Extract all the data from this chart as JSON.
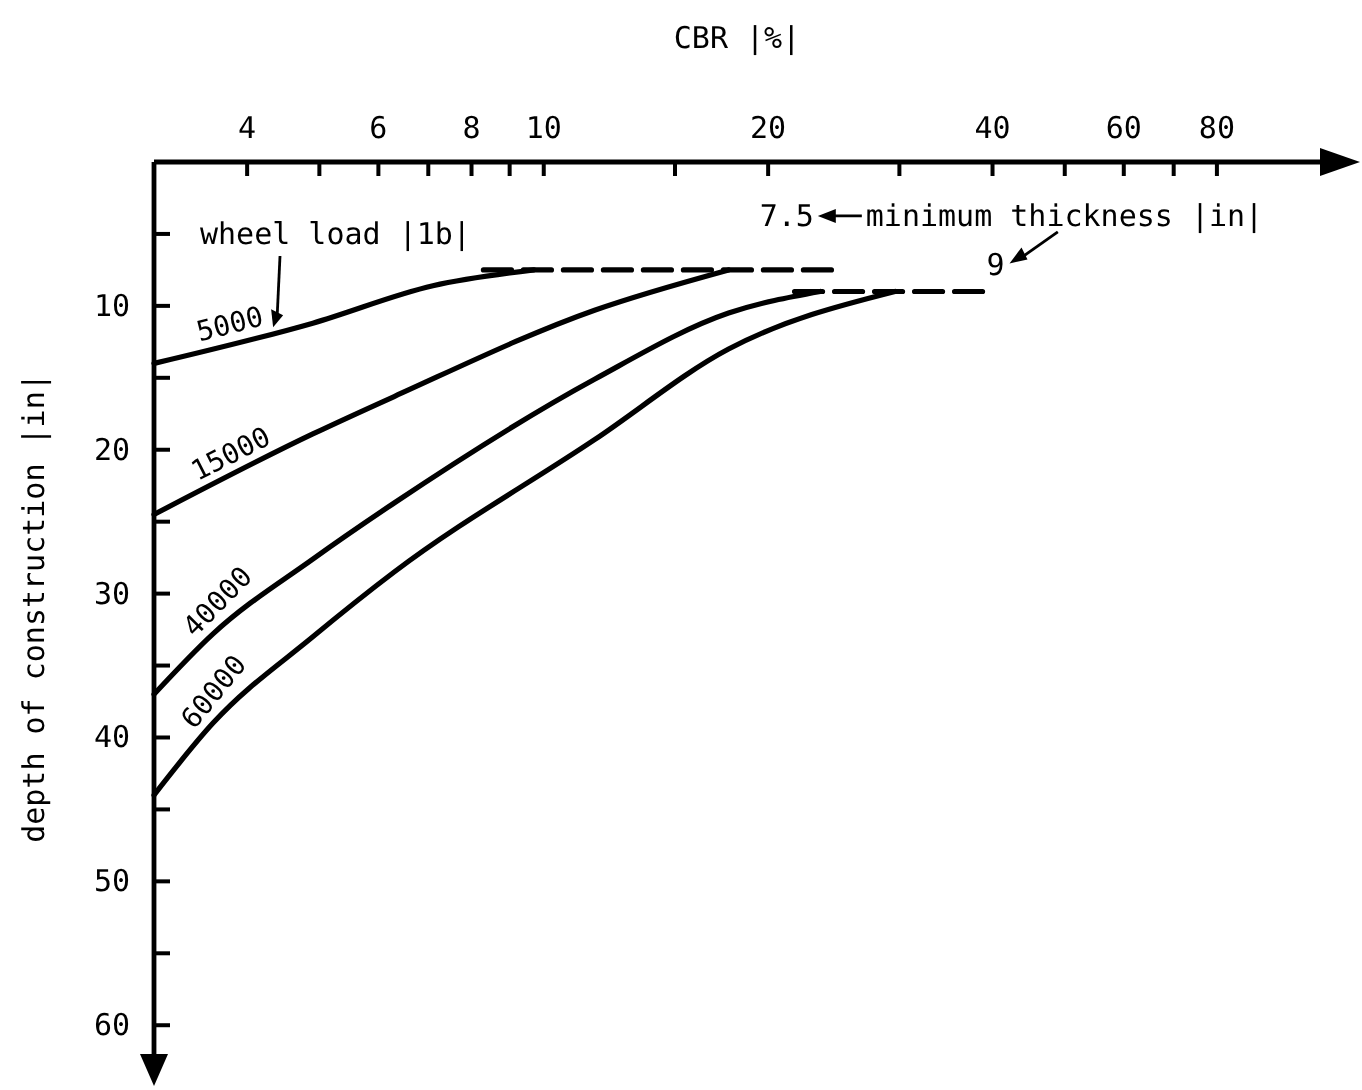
{
  "chart_data": {
    "type": "line",
    "xlabel": "CBR |%|",
    "ylabel": "depth of construction |in|",
    "legend_title": "wheel load |1b|",
    "log": "x",
    "xlim": [
      3,
      110
    ],
    "ylim": [
      62,
      0
    ],
    "line_style": "solid",
    "marker": "none",
    "grid": false,
    "legend": "top left",
    "xticks": [
      {
        "value": 4,
        "label": "4"
      },
      {
        "value": 5,
        "label": null
      },
      {
        "value": 6,
        "label": "6"
      },
      {
        "value": 7,
        "label": null
      },
      {
        "value": 8,
        "label": "8"
      },
      {
        "value": 9,
        "label": null
      },
      {
        "value": 10,
        "label": "10"
      },
      {
        "value": 15,
        "label": null
      },
      {
        "value": 20,
        "label": "20"
      },
      {
        "value": 30,
        "label": null
      },
      {
        "value": 40,
        "label": "40"
      },
      {
        "value": 50,
        "label": null
      },
      {
        "value": 60,
        "label": "60"
      },
      {
        "value": 70,
        "label": null
      },
      {
        "value": 80,
        "label": "80"
      }
    ],
    "yticks": [
      {
        "value": 5,
        "label": null
      },
      10,
      {
        "value": 15,
        "label": null
      },
      20,
      {
        "value": 25,
        "label": null
      },
      30,
      {
        "value": 35,
        "label": null
      },
      40,
      {
        "value": 45,
        "label": null
      },
      50,
      {
        "value": 55,
        "label": null
      },
      60
    ],
    "series": [
      {
        "name": "5000",
        "color": "#000000",
        "x": [
          3,
          4.9,
          7.1,
          9.7
        ],
        "values": [
          14,
          11.2,
          8.6,
          7.5
        ]
      },
      {
        "name": "15000",
        "color": "#000000",
        "x": [
          3,
          4.9,
          6.3,
          11.7,
          17.7
        ],
        "values": [
          24.5,
          18.9,
          16.3,
          10.3,
          7.5
        ]
      },
      {
        "name": "40000",
        "color": "#000000",
        "x": [
          3,
          3.6,
          4.9,
          6.3,
          11.7,
          17.7,
          23.5
        ],
        "values": [
          37,
          32.8,
          27.6,
          23.7,
          15.1,
          10.5,
          9
        ]
      },
      {
        "name": "60000",
        "color": "#000000",
        "x": [
          3,
          3.6,
          4.9,
          6.3,
          11.7,
          17.7,
          29.6
        ],
        "values": [
          44,
          39,
          33,
          28.5,
          19.3,
          13,
          9
        ]
      },
      {
        "color": "#000000",
        "line_style": "dashed",
        "x": [
          8.3,
          24.5
        ],
        "values": [
          7.5,
          7.5
        ]
      },
      {
        "color": "#000000",
        "line_style": "dashed",
        "x": [
          21.7,
          38.9
        ],
        "values": [
          9,
          9
        ]
      }
    ],
    "annotations": [
      "minimum thickness |in|",
      {
        "text": "7.5",
        "x": 24.5,
        "y": 7.5
      },
      {
        "text": "9",
        "x": 38.9,
        "y": 9
      }
    ]
  }
}
